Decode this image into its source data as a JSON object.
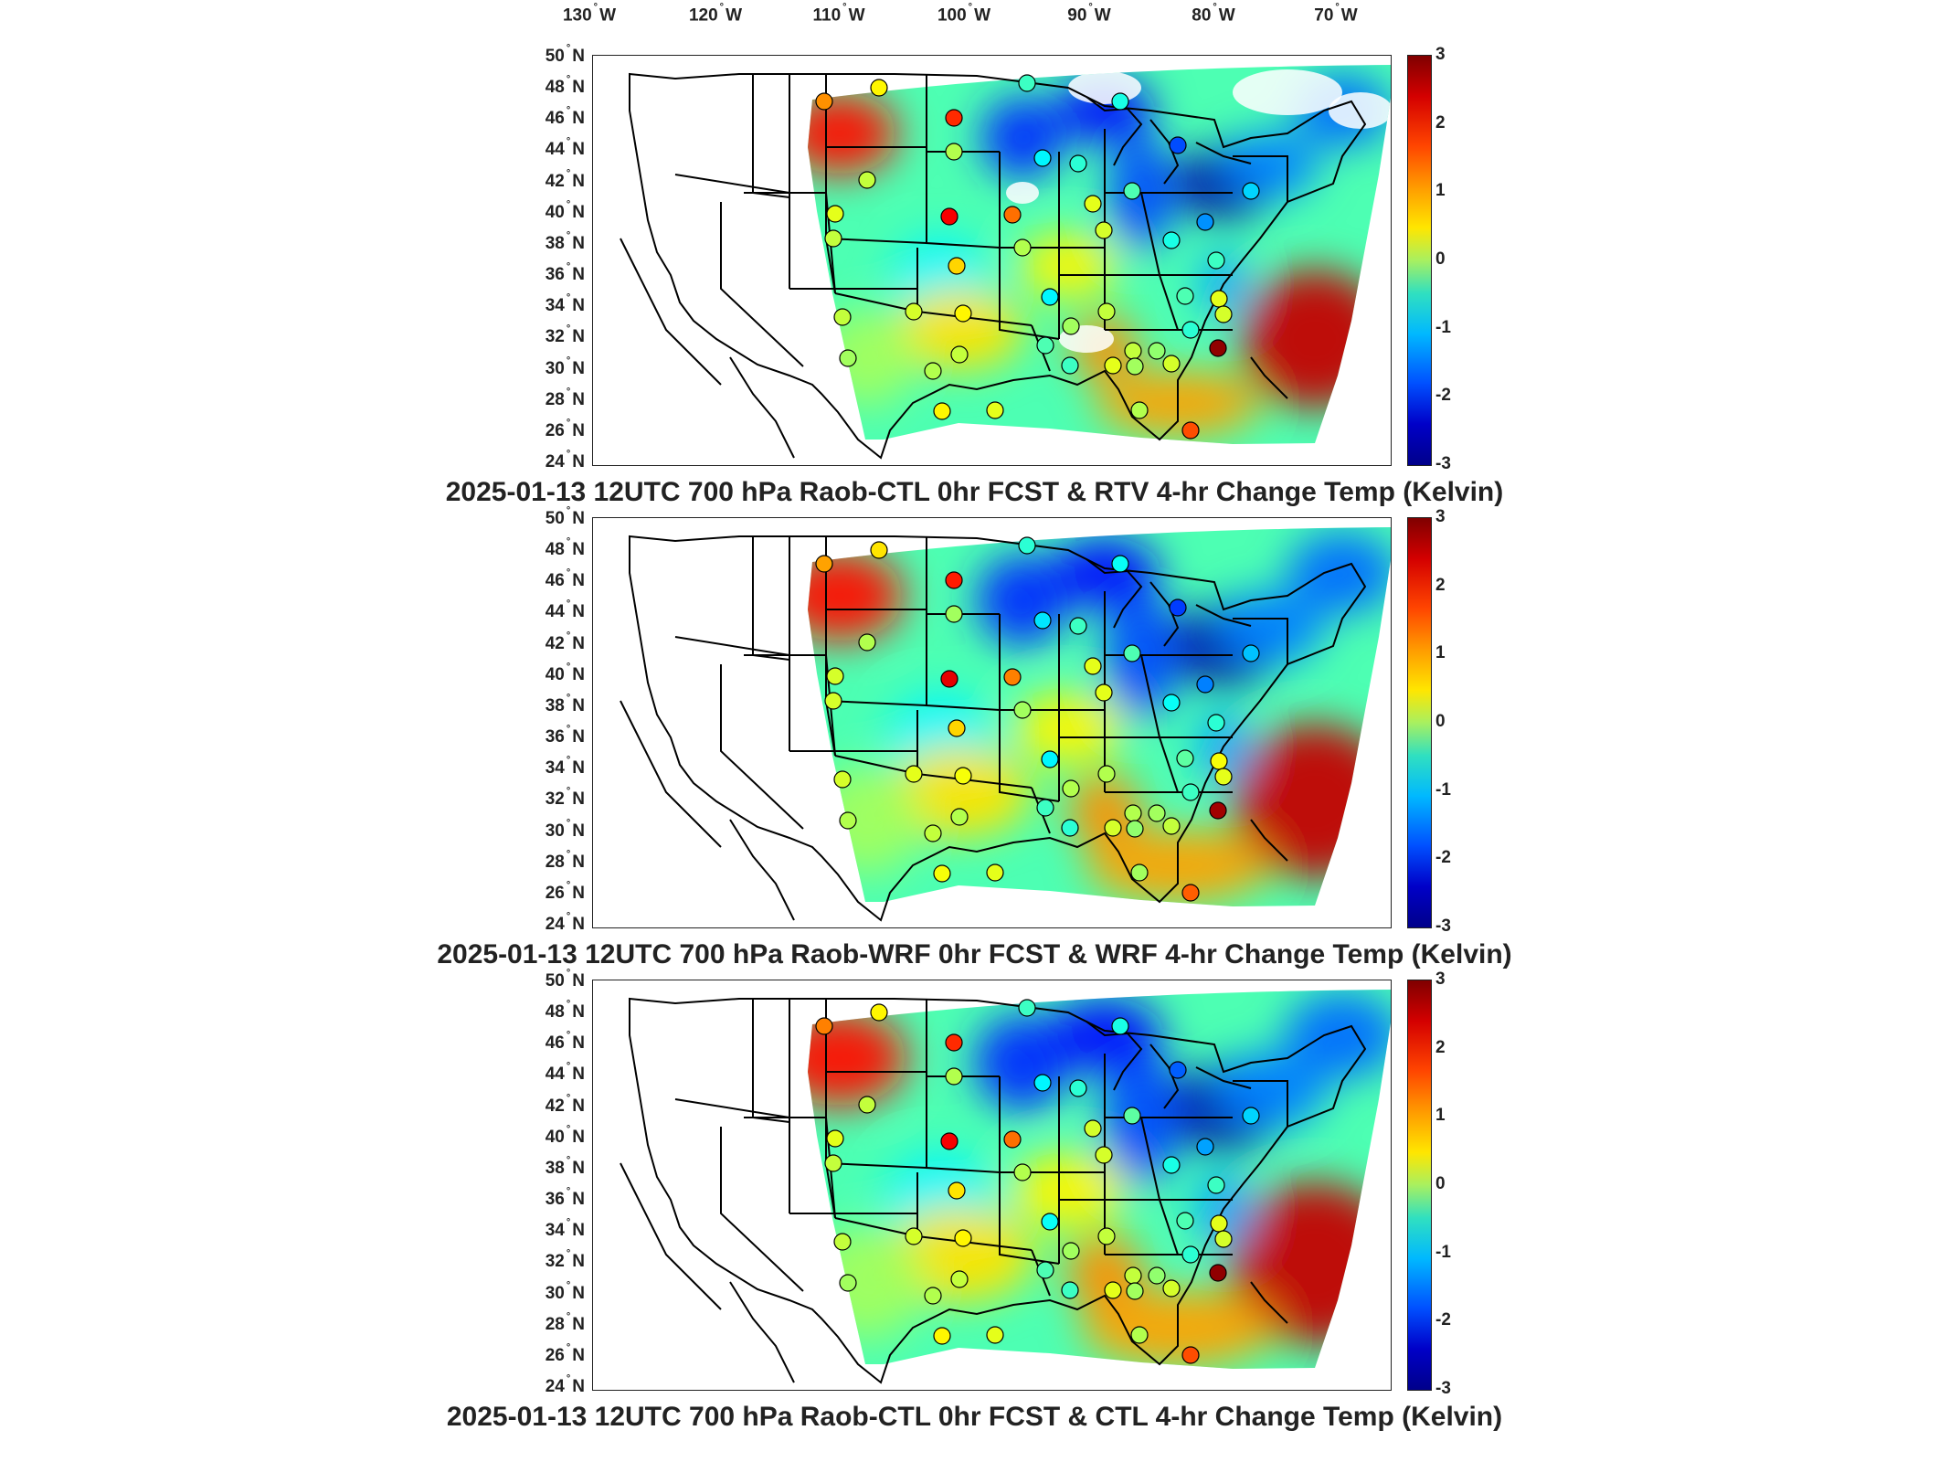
{
  "longitude_labels": [
    {
      "deg": "130",
      "hemi": "W"
    },
    {
      "deg": "120",
      "hemi": "W"
    },
    {
      "deg": "110",
      "hemi": "W"
    },
    {
      "deg": "100",
      "hemi": "W"
    },
    {
      "deg": "90",
      "hemi": "W"
    },
    {
      "deg": "80",
      "hemi": "W"
    },
    {
      "deg": "70",
      "hemi": "W"
    }
  ],
  "latitude_labels": [
    {
      "deg": "50",
      "hemi": "N"
    },
    {
      "deg": "48",
      "hemi": "N"
    },
    {
      "deg": "46",
      "hemi": "N"
    },
    {
      "deg": "44",
      "hemi": "N"
    },
    {
      "deg": "42",
      "hemi": "N"
    },
    {
      "deg": "40",
      "hemi": "N"
    },
    {
      "deg": "38",
      "hemi": "N"
    },
    {
      "deg": "36",
      "hemi": "N"
    },
    {
      "deg": "34",
      "hemi": "N"
    },
    {
      "deg": "32",
      "hemi": "N"
    },
    {
      "deg": "30",
      "hemi": "N"
    },
    {
      "deg": "28",
      "hemi": "N"
    },
    {
      "deg": "26",
      "hemi": "N"
    },
    {
      "deg": "24",
      "hemi": "N"
    }
  ],
  "degree_symbol": "°",
  "colorbar": {
    "ticks": [
      "3",
      "2",
      "1",
      "0",
      "-1",
      "-2",
      "-3"
    ],
    "min": -3,
    "max": 3,
    "colormap": "jet"
  },
  "panels": [
    {
      "title": "2025-01-13 12UTC 700 hPa Raob-CTL 0hr FCST & RTV 4-hr Change Temp (Kelvin)"
    },
    {
      "title": "2025-01-13 12UTC 700 hPa Raob-WRF 0hr FCST & WRF 4-hr Change Temp (Kelvin)"
    },
    {
      "title": "2025-01-13 12UTC 700 hPa Raob-CTL 0hr FCST & CTL 4-hr Change Temp (Kelvin)"
    }
  ],
  "colors": {
    "land": "#ffffff",
    "borders": "#000000",
    "field_cold": "#0000c8",
    "field_warm": "#ff4500",
    "field_neutral": "#80f0a0"
  }
}
